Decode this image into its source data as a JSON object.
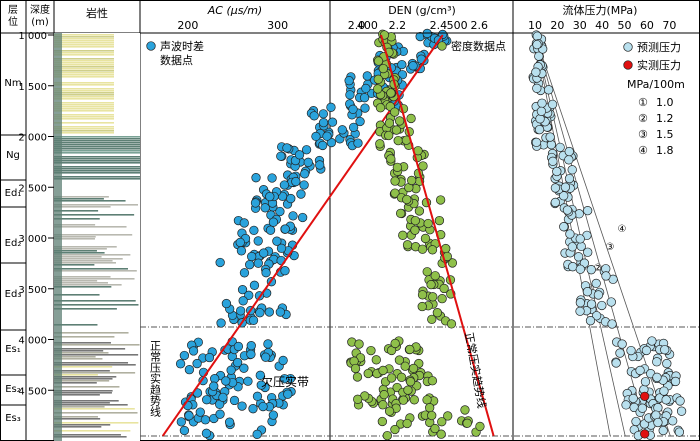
{
  "header": {
    "formation": "层\n位",
    "depth": "深度\n(m)",
    "lithology": "岩性"
  },
  "formations": [
    {
      "id": "nm",
      "label": "Nm"
    },
    {
      "id": "ng",
      "label": "Ng"
    },
    {
      "id": "ed1",
      "label": "Ed₁"
    },
    {
      "id": "ed2",
      "label": "Ed₂"
    },
    {
      "id": "ed3",
      "label": "Ed₃"
    },
    {
      "id": "es1",
      "label": "Es₁"
    },
    {
      "id": "es2",
      "label": "Es₂"
    },
    {
      "id": "es3",
      "label": "Es₃"
    }
  ],
  "depth_ticks": [
    "1 000",
    "1 500",
    "2 000",
    "2 500",
    "3 000",
    "3 500",
    "4 000",
    "4 500"
  ],
  "zone_labels": {
    "undercompaction": "欠压实带",
    "ac_trend": "正常压实趋势线",
    "den_trend": "正常压实趋势线"
  },
  "colors": {
    "ac_points": "#2aa3dc",
    "den_points": "#8fc04a",
    "pred_points": "#b9e0ee",
    "meas_points": "#e01010",
    "trend": "#e01010",
    "lith_sand": "#e8e4a0",
    "lith_shale": "#5d7f74"
  },
  "chart_data": [
    {
      "id": "ac",
      "type": "scatter",
      "title": "AC (μs/m)",
      "x_ticks": [
        200,
        300,
        400,
        500
      ],
      "legend": "声波时差\n数据点",
      "series": [
        {
          "name": "声波时差数据点"
        }
      ],
      "trend": {
        "x": [
          484,
          172
        ],
        "y": [
          1000,
          4950
        ]
      },
      "clusters": [
        {
          "d": [
            980,
            1100
          ],
          "x": [
            455,
            492
          ],
          "n": 14
        },
        {
          "d": [
            1100,
            1400
          ],
          "x": [
            410,
            470
          ],
          "n": 26
        },
        {
          "d": [
            1400,
            1700
          ],
          "x": [
            375,
            440
          ],
          "n": 28
        },
        {
          "d": [
            1700,
            2100
          ],
          "x": [
            335,
            400
          ],
          "n": 32
        },
        {
          "d": [
            2100,
            2400
          ],
          "x": [
            300,
            350
          ],
          "n": 22
        },
        {
          "d": [
            2400,
            2800
          ],
          "x": [
            275,
            330
          ],
          "n": 32
        },
        {
          "d": [
            2800,
            3200
          ],
          "x": [
            255,
            325
          ],
          "n": 34
        },
        {
          "d": [
            3200,
            3850
          ],
          "x": [
            235,
            310
          ],
          "n": 38
        },
        {
          "d": [
            4000,
            4300
          ],
          "x": [
            190,
            310
          ],
          "n": 34
        },
        {
          "d": [
            4300,
            4650
          ],
          "x": [
            190,
            330
          ],
          "n": 44
        },
        {
          "d": [
            4650,
            4950
          ],
          "x": [
            190,
            300
          ],
          "n": 24
        }
      ]
    },
    {
      "id": "den",
      "type": "scatter",
      "title": "DEN (g/cm³)",
      "x_ticks": [
        2.0,
        2.2,
        2.4,
        2.6
      ],
      "legend": "密度数据点",
      "series": [
        {
          "name": "密度数据点"
        }
      ],
      "trend": {
        "x": [
          2.12,
          2.67
        ],
        "y": [
          1000,
          4950
        ]
      },
      "clusters": [
        {
          "d": [
            980,
            1300
          ],
          "x": [
            2.1,
            2.19
          ],
          "n": 18
        },
        {
          "d": [
            1300,
            1700
          ],
          "x": [
            2.1,
            2.2
          ],
          "n": 22
        },
        {
          "d": [
            1700,
            2100
          ],
          "x": [
            2.1,
            2.27
          ],
          "n": 24
        },
        {
          "d": [
            2100,
            2600
          ],
          "x": [
            2.15,
            2.35
          ],
          "n": 26
        },
        {
          "d": [
            2600,
            3100
          ],
          "x": [
            2.2,
            2.42
          ],
          "n": 30
        },
        {
          "d": [
            3100,
            3850
          ],
          "x": [
            2.32,
            2.47
          ],
          "n": 32
        },
        {
          "d": [
            4000,
            4350
          ],
          "x": [
            1.97,
            2.35
          ],
          "n": 36
        },
        {
          "d": [
            4350,
            4650
          ],
          "x": [
            2.0,
            2.38
          ],
          "n": 40
        },
        {
          "d": [
            4650,
            4950
          ],
          "x": [
            2.1,
            2.62
          ],
          "n": 26
        }
      ]
    },
    {
      "id": "pres",
      "type": "scatter",
      "title": "流体压力(MPa)",
      "x_ticks": [
        10,
        20,
        30,
        40,
        50,
        60,
        70
      ],
      "legend_title": "MPa/100m",
      "series": [
        {
          "name": "预测压力"
        },
        {
          "name": "实测压力"
        }
      ],
      "gradients": [
        {
          "label": "①",
          "value": "1.0",
          "rate": 1.0
        },
        {
          "label": "②",
          "value": "1.2",
          "rate": 1.2
        },
        {
          "label": "③",
          "value": "1.5",
          "rate": 1.5
        },
        {
          "label": "④",
          "value": "1.8",
          "rate": 1.8
        }
      ],
      "clusters": [
        {
          "d": [
            980,
            1500
          ],
          "x": [
            9,
            14
          ],
          "n": 28
        },
        {
          "d": [
            1500,
            2100
          ],
          "x": [
            10,
            18
          ],
          "n": 32
        },
        {
          "d": [
            2100,
            2700
          ],
          "x": [
            17,
            28
          ],
          "n": 30
        },
        {
          "d": [
            2700,
            3300
          ],
          "x": [
            22,
            34
          ],
          "n": 28
        },
        {
          "d": [
            3300,
            3850
          ],
          "x": [
            30,
            45
          ],
          "n": 26
        },
        {
          "d": [
            4000,
            4350
          ],
          "x": [
            46,
            72
          ],
          "n": 30
        },
        {
          "d": [
            4350,
            4650
          ],
          "x": [
            50,
            75
          ],
          "n": 40
        },
        {
          "d": [
            4650,
            4950
          ],
          "x": [
            54,
            76
          ],
          "n": 28
        }
      ],
      "measured": [
        {
          "d": 4560,
          "x": 59
        },
        {
          "d": 4930,
          "x": 59
        }
      ]
    }
  ]
}
